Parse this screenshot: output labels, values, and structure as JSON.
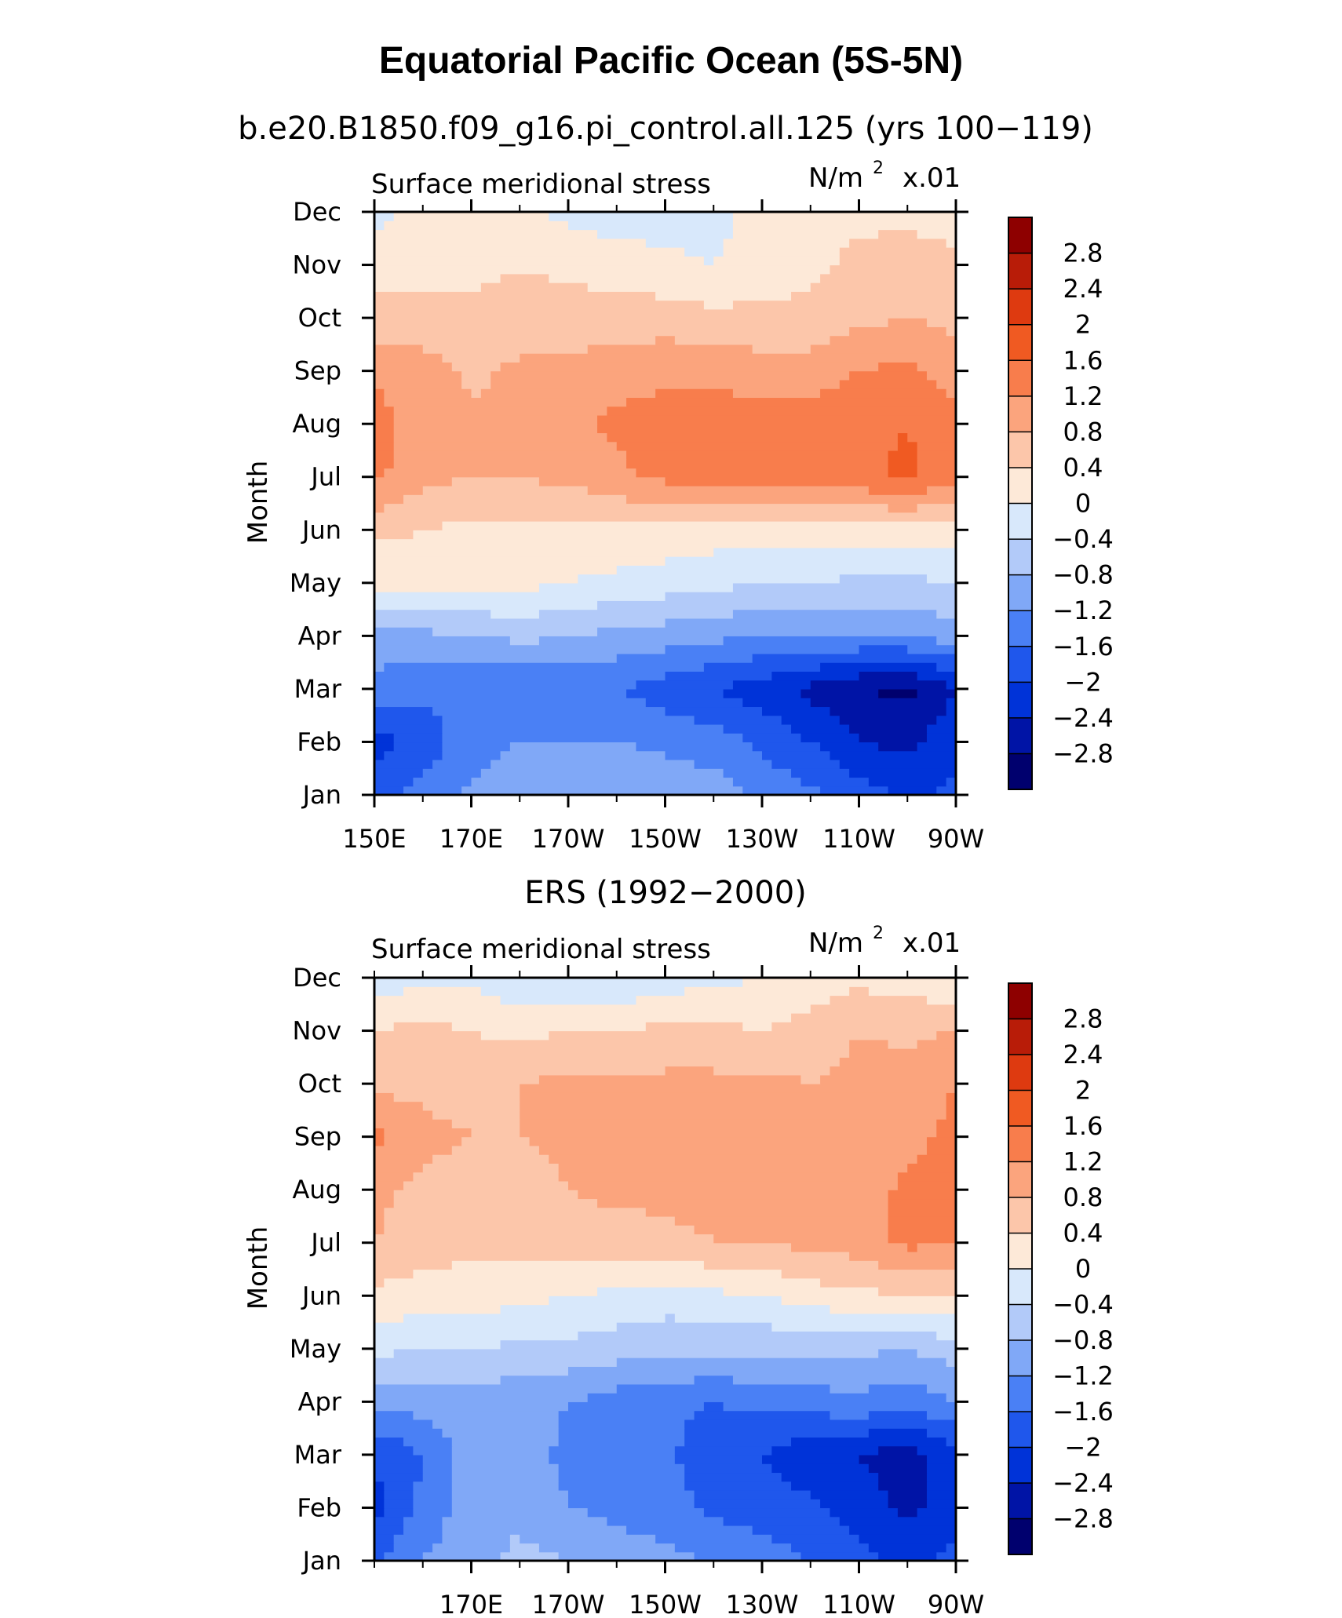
{
  "figure": {
    "title": "Equatorial Pacific Ocean (5S-5N)"
  },
  "chart_data": [
    {
      "type": "heatmap",
      "title": "b.e20.B1850.f09_g16.pi_control.all.125 (yrs 100−119)",
      "left_label": "Surface meridional stress",
      "units": {
        "base": "N/m",
        "sup": "2",
        "scale": "x.01"
      },
      "ylabel": "Month",
      "xlabel": "",
      "x": {
        "range": [
          150,
          270
        ],
        "ticks": [
          150,
          170,
          190,
          210,
          230,
          250,
          270
        ],
        "tick_labels": [
          "150E",
          "170E",
          "170W",
          "150W",
          "130W",
          "110W",
          "90W"
        ]
      },
      "months": [
        "Jan",
        "Feb",
        "Mar",
        "Apr",
        "May",
        "Jun",
        "Jul",
        "Aug",
        "Sep",
        "Oct",
        "Nov",
        "Dec"
      ],
      "contour_levels": [
        -2.8,
        -2.4,
        -2,
        -1.6,
        -1.2,
        -0.8,
        -0.4,
        0,
        0.4,
        0.8,
        1.2,
        1.6,
        2,
        2.4,
        2.8
      ],
      "level_labels": [
        "2.8",
        "2.4",
        "2",
        "1.6",
        "1.2",
        "0.8",
        "0.4",
        "0",
        "−0.4",
        "−0.8",
        "−1.2",
        "−1.6",
        "−2",
        "−2.4",
        "−2.8"
      ],
      "grid_lon": [
        150,
        160,
        170,
        180,
        190,
        200,
        210,
        220,
        230,
        240,
        250,
        260,
        270
      ],
      "values": [
        [
          -1.7,
          -1.5,
          -1.1,
          -0.9,
          -0.8,
          -0.8,
          -0.9,
          -1.0,
          -1.3,
          -1.5,
          -1.8,
          -2.1,
          -1.9
        ],
        [
          -2.2,
          -1.8,
          -1.4,
          -1.2,
          -1.2,
          -1.2,
          -1.3,
          -1.4,
          -1.7,
          -2.0,
          -2.4,
          -2.5,
          -2.1
        ],
        [
          -1.4,
          -1.5,
          -1.6,
          -1.6,
          -1.5,
          -1.6,
          -1.8,
          -2.0,
          -2.2,
          -2.5,
          -2.8,
          -2.9,
          -2.4
        ],
        [
          -0.9,
          -0.9,
          -0.8,
          -0.7,
          -0.8,
          -0.9,
          -1.0,
          -1.1,
          -1.2,
          -1.2,
          -1.2,
          -1.2,
          -1.0
        ],
        [
          0.1,
          0.1,
          0.1,
          0.1,
          0.0,
          -0.1,
          -0.2,
          -0.3,
          -0.4,
          -0.4,
          -0.5,
          -0.5,
          -0.4
        ],
        [
          0.5,
          0.4,
          0.3,
          0.3,
          0.3,
          0.3,
          0.3,
          0.2,
          0.2,
          0.2,
          0.2,
          0.2,
          0.3
        ],
        [
          1.3,
          0.9,
          0.8,
          0.8,
          0.9,
          1.1,
          1.3,
          1.4,
          1.4,
          1.4,
          1.5,
          1.7,
          1.3
        ],
        [
          1.4,
          1.0,
          0.9,
          0.9,
          1.1,
          1.3,
          1.4,
          1.4,
          1.4,
          1.4,
          1.5,
          1.6,
          1.3
        ],
        [
          1.1,
          1.0,
          0.7,
          0.9,
          0.9,
          1.0,
          1.1,
          1.1,
          1.0,
          1.0,
          1.2,
          1.3,
          1.0
        ],
        [
          0.6,
          0.5,
          0.5,
          0.5,
          0.6,
          0.6,
          0.6,
          0.5,
          0.5,
          0.5,
          0.7,
          0.8,
          0.7
        ],
        [
          0.2,
          0.3,
          0.3,
          0.4,
          0.3,
          0.2,
          0.1,
          0.0,
          0.2,
          0.3,
          0.5,
          0.6,
          0.5
        ],
        [
          -0.1,
          0.1,
          0.2,
          0.1,
          -0.1,
          -0.2,
          -0.2,
          -0.2,
          0.2,
          0.3,
          0.3,
          0.3,
          0.2
        ]
      ]
    },
    {
      "type": "heatmap",
      "title": "ERS (1992−2000)",
      "left_label": "Surface meridional stress",
      "units": {
        "base": "N/m",
        "sup": "2",
        "scale": "x.01"
      },
      "ylabel": "Month",
      "xlabel": "",
      "x": {
        "range": [
          150,
          270
        ],
        "ticks": [
          170,
          190,
          210,
          230,
          250,
          270
        ],
        "tick_labels": [
          "170E",
          "170W",
          "150W",
          "130W",
          "110W",
          "90W"
        ]
      },
      "months": [
        "Jan",
        "Feb",
        "Mar",
        "Apr",
        "May",
        "Jun",
        "Jul",
        "Aug",
        "Sep",
        "Oct",
        "Nov",
        "Dec"
      ],
      "contour_levels": [
        -2.8,
        -2.4,
        -2,
        -1.6,
        -1.2,
        -0.8,
        -0.4,
        0,
        0.4,
        0.8,
        1.2,
        1.6,
        2,
        2.4,
        2.8
      ],
      "level_labels": [
        "2.8",
        "2.4",
        "2",
        "1.6",
        "1.2",
        "0.8",
        "0.4",
        "0",
        "−0.4",
        "−0.8",
        "−1.2",
        "−1.6",
        "−2",
        "−2.4",
        "−2.8"
      ],
      "grid_lon": [
        150,
        160,
        170,
        180,
        190,
        200,
        210,
        220,
        230,
        240,
        250,
        260,
        270
      ],
      "values": [
        [
          -1.7,
          -1.2,
          -0.9,
          -0.7,
          -0.8,
          -1.0,
          -1.1,
          -1.2,
          -1.4,
          -1.6,
          -1.9,
          -2.1,
          -1.9
        ],
        [
          -2.1,
          -1.5,
          -1.0,
          -0.9,
          -1.2,
          -1.3,
          -1.4,
          -1.7,
          -1.8,
          -1.9,
          -2.2,
          -2.5,
          -2.2
        ],
        [
          -2.0,
          -1.6,
          -1.0,
          -1.0,
          -1.3,
          -1.4,
          -1.5,
          -1.9,
          -2.0,
          -2.3,
          -2.4,
          -2.6,
          -2.1
        ],
        [
          -1.1,
          -1.0,
          -1.0,
          -1.1,
          -1.2,
          -1.4,
          -1.5,
          -1.6,
          -1.5,
          -1.4,
          -1.3,
          -1.5,
          -1.2
        ],
        [
          -0.3,
          -0.4,
          -0.4,
          -0.5,
          -0.5,
          -0.6,
          -0.7,
          -0.7,
          -0.7,
          -0.7,
          -0.7,
          -0.8,
          -0.6
        ],
        [
          0.3,
          0.2,
          0.2,
          0.1,
          0.0,
          -0.1,
          -0.2,
          -0.1,
          0.0,
          0.2,
          0.3,
          0.4,
          0.4
        ],
        [
          0.8,
          0.6,
          0.5,
          0.5,
          0.6,
          0.6,
          0.7,
          0.8,
          0.8,
          0.9,
          1.0,
          1.3,
          1.2
        ],
        [
          0.9,
          0.7,
          0.6,
          0.6,
          0.8,
          0.9,
          0.9,
          0.9,
          0.9,
          0.9,
          1.0,
          1.3,
          1.3
        ],
        [
          1.3,
          0.9,
          0.8,
          0.8,
          0.9,
          0.9,
          0.9,
          0.9,
          0.9,
          0.9,
          0.9,
          1.1,
          1.3
        ],
        [
          0.7,
          0.7,
          0.7,
          0.8,
          0.9,
          0.9,
          0.9,
          0.9,
          0.9,
          0.8,
          0.9,
          1.0,
          1.2
        ],
        [
          0.4,
          0.5,
          0.4,
          0.3,
          0.4,
          0.4,
          0.5,
          0.5,
          0.4,
          0.6,
          0.8,
          0.7,
          0.8
        ],
        [
          -0.2,
          -0.1,
          -0.1,
          -0.3,
          -0.3,
          -0.4,
          -0.2,
          -0.1,
          0.0,
          0.1,
          0.3,
          0.2,
          0.1
        ]
      ]
    }
  ],
  "colorbar": {
    "colors": [
      "#00006e",
      "#0014a6",
      "#0033d8",
      "#1f57ec",
      "#4a80f5",
      "#80a8f7",
      "#b2caf9",
      "#d8e8fb",
      "#fde9d8",
      "#fcc6aa",
      "#fba47d",
      "#f87d4c",
      "#f05a22",
      "#de3a10",
      "#b81c08",
      "#8e0000"
    ]
  }
}
